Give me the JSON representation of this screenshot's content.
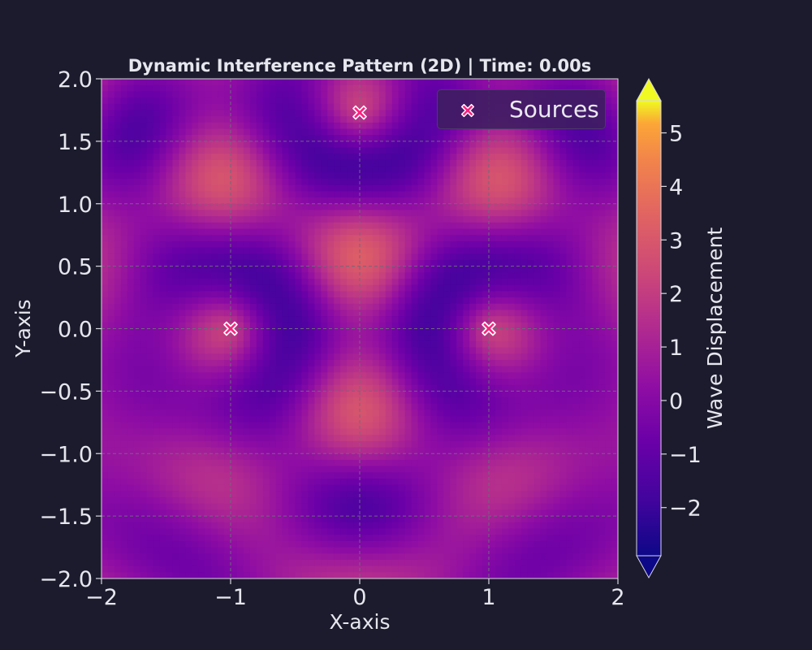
{
  "chart_data": {
    "type": "heatmap",
    "title": "Dynamic Interference Pattern (2D) | Time: 0.00s",
    "xlabel": "X-axis",
    "ylabel": "Y-axis",
    "xlim": [
      -2,
      2
    ],
    "ylim": [
      -2,
      2
    ],
    "xticks": [
      "−2",
      "−1",
      "0",
      "1",
      "2"
    ],
    "yticks": [
      "−2.0",
      "−1.5",
      "−1.0",
      "−0.5",
      "0.0",
      "0.5",
      "1.0",
      "1.5",
      "2.0"
    ],
    "grid": true,
    "colormap": "plasma",
    "colorbar": {
      "label": "Wave Displacement",
      "ticks": [
        "−2",
        "−1",
        "0",
        "1",
        "2",
        "3",
        "4",
        "5"
      ],
      "range": [
        -2.9,
        5.6
      ],
      "extend": "both"
    },
    "legend": {
      "position": "top-right",
      "entries": [
        "Sources"
      ]
    },
    "sources": [
      {
        "x": -1.0,
        "y": 0.0
      },
      {
        "x": 1.0,
        "y": 0.0
      },
      {
        "x": 0.0,
        "y": 1.73
      }
    ]
  },
  "colors": {
    "background": "#1b1b2d",
    "text": "#e6e6ee",
    "marker": "#ff1f7f",
    "grid": "#6b6b7a"
  }
}
